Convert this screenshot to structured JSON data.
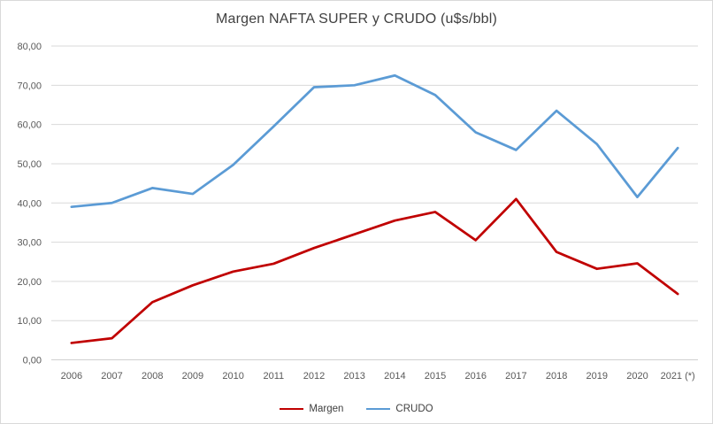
{
  "window": {
    "background": "#ffffff",
    "border_color": "#d9d9d9"
  },
  "colors": {
    "gridline": "#d9d9d9",
    "zero_line": "#d0d0d0",
    "axis_text": "#595959",
    "title_text": "#404040",
    "legend_text": "#404040"
  },
  "chart_data": {
    "type": "line",
    "title": "Margen NAFTA SUPER y CRUDO (u$s/bbl)",
    "xlabel": "",
    "ylabel": "",
    "categories": [
      "2006",
      "2007",
      "2008",
      "2009",
      "2010",
      "2011",
      "2012",
      "2013",
      "2014",
      "2015",
      "2016",
      "2017",
      "2018",
      "2019",
      "2020",
      "2021 (*)"
    ],
    "series": [
      {
        "name": "Margen",
        "color": "#c00000",
        "values": [
          4.3,
          5.5,
          14.7,
          19.0,
          22.5,
          24.5,
          28.5,
          32.0,
          35.5,
          37.7,
          30.5,
          41.0,
          27.5,
          23.2,
          24.6,
          16.8
        ]
      },
      {
        "name": "CRUDO",
        "color": "#5b9bd5",
        "values": [
          39.0,
          40.0,
          43.8,
          42.3,
          49.7,
          59.5,
          69.5,
          70.0,
          72.5,
          67.5,
          58.0,
          53.5,
          63.5,
          55.0,
          41.5,
          54.0
        ]
      }
    ],
    "ylim": [
      0,
      80
    ],
    "ytick_step": 10,
    "ytick_labels": [
      "0,00",
      "10,00",
      "20,00",
      "30,00",
      "40,00",
      "50,00",
      "60,00",
      "70,00",
      "80,00"
    ],
    "grid": true,
    "legend_position": "bottom"
  }
}
